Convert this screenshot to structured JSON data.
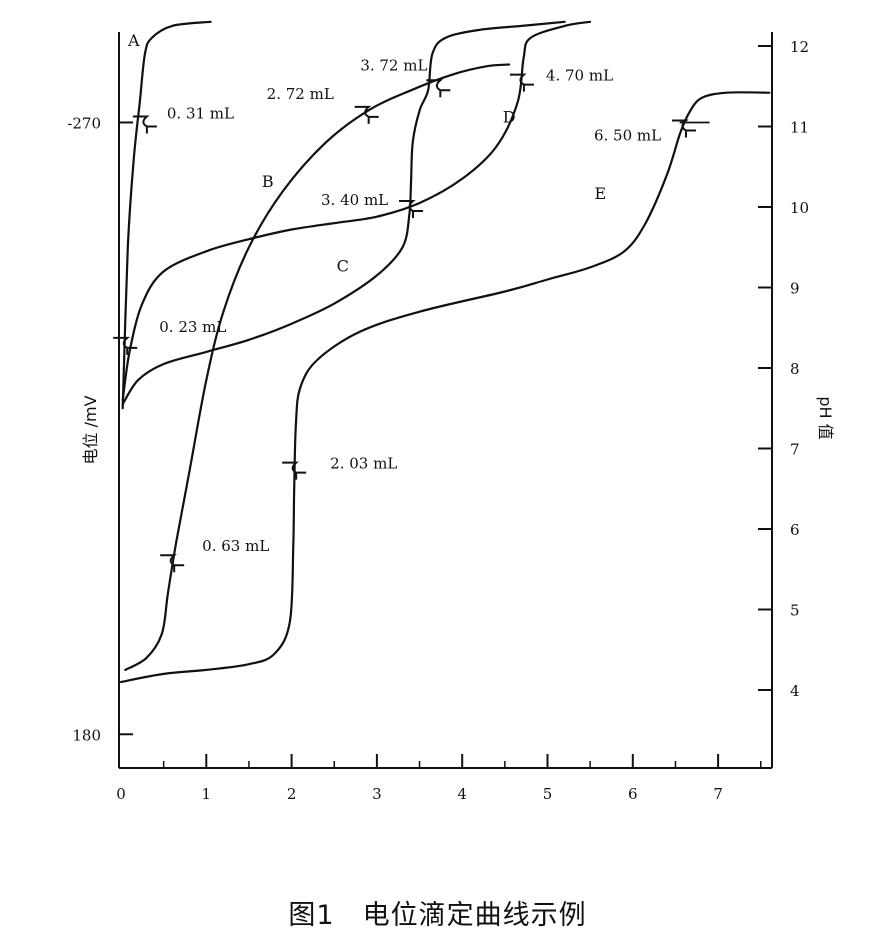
{
  "caption": "图1　电位滴定曲线示例",
  "chart_data": {
    "type": "line",
    "xlabel": "",
    "ylabel_left": "电位 /mV",
    "ylabel_right": "pH 值",
    "xlim": [
      0,
      7.6
    ],
    "ylim_right": [
      3.0,
      12.3
    ],
    "x_ticks": [
      "0",
      "1",
      "2",
      "3",
      "4",
      "5",
      "6",
      "7"
    ],
    "right_ticks": [
      "4",
      "5",
      "6",
      "7",
      "8",
      "9",
      "10",
      "11",
      "12"
    ],
    "left_ticks": [
      {
        "label": "-270",
        "ph": 11.05
      },
      {
        "label": "180",
        "ph": 3.45
      }
    ],
    "series": [
      {
        "name": "A",
        "label_at": [
          0.15,
          12.0
        ],
        "points": [
          [
            0.02,
            7.5
          ],
          [
            0.08,
            9.5
          ],
          [
            0.15,
            10.6
          ],
          [
            0.22,
            11.3
          ],
          [
            0.28,
            11.9
          ],
          [
            0.36,
            12.1
          ],
          [
            0.6,
            12.25
          ],
          [
            1.05,
            12.3
          ]
        ]
      },
      {
        "name": "B",
        "label_at": [
          1.72,
          10.25
        ],
        "points": [
          [
            0.05,
            4.25
          ],
          [
            0.3,
            4.4
          ],
          [
            0.48,
            4.7
          ],
          [
            0.55,
            5.2
          ],
          [
            0.65,
            5.85
          ],
          [
            0.8,
            6.7
          ],
          [
            1.0,
            7.85
          ],
          [
            1.2,
            8.7
          ],
          [
            1.5,
            9.5
          ],
          [
            1.9,
            10.2
          ],
          [
            2.4,
            10.8
          ],
          [
            2.9,
            11.2
          ],
          [
            3.4,
            11.45
          ],
          [
            3.9,
            11.65
          ],
          [
            4.3,
            11.75
          ],
          [
            4.55,
            11.77
          ]
        ]
      },
      {
        "name": "C",
        "label_at": [
          2.6,
          9.2
        ],
        "points": [
          [
            0.02,
            7.55
          ],
          [
            0.2,
            7.85
          ],
          [
            0.5,
            8.05
          ],
          [
            1.0,
            8.2
          ],
          [
            1.5,
            8.35
          ],
          [
            2.0,
            8.55
          ],
          [
            2.5,
            8.8
          ],
          [
            3.0,
            9.15
          ],
          [
            3.3,
            9.5
          ],
          [
            3.38,
            9.9
          ],
          [
            3.4,
            10.3
          ],
          [
            3.42,
            10.8
          ],
          [
            3.5,
            11.2
          ],
          [
            3.6,
            11.45
          ],
          [
            3.65,
            11.9
          ],
          [
            3.8,
            12.1
          ],
          [
            4.2,
            12.2
          ],
          [
            4.7,
            12.25
          ],
          [
            5.2,
            12.3
          ]
        ]
      },
      {
        "name": "D",
        "label_at": [
          4.55,
          11.05
        ],
        "points": [
          [
            0.02,
            7.6
          ],
          [
            0.1,
            8.2
          ],
          [
            0.25,
            8.8
          ],
          [
            0.5,
            9.2
          ],
          [
            1.0,
            9.45
          ],
          [
            1.5,
            9.6
          ],
          [
            2.0,
            9.72
          ],
          [
            2.5,
            9.8
          ],
          [
            3.0,
            9.88
          ],
          [
            3.5,
            10.05
          ],
          [
            4.0,
            10.35
          ],
          [
            4.4,
            10.75
          ],
          [
            4.65,
            11.3
          ],
          [
            4.72,
            11.85
          ],
          [
            4.8,
            12.1
          ],
          [
            5.2,
            12.25
          ],
          [
            5.5,
            12.3
          ]
        ]
      },
      {
        "name": "E",
        "label_at": [
          5.62,
          10.1
        ],
        "points": [
          [
            0.0,
            4.1
          ],
          [
            0.5,
            4.2
          ],
          [
            1.0,
            4.25
          ],
          [
            1.5,
            4.32
          ],
          [
            1.8,
            4.45
          ],
          [
            1.98,
            4.85
          ],
          [
            2.02,
            5.8
          ],
          [
            2.03,
            6.5
          ],
          [
            2.05,
            7.3
          ],
          [
            2.1,
            7.75
          ],
          [
            2.3,
            8.1
          ],
          [
            2.8,
            8.45
          ],
          [
            3.5,
            8.7
          ],
          [
            4.5,
            8.95
          ],
          [
            5.0,
            9.1
          ],
          [
            5.5,
            9.25
          ],
          [
            5.9,
            9.45
          ],
          [
            6.15,
            9.8
          ],
          [
            6.4,
            10.4
          ],
          [
            6.55,
            10.9
          ],
          [
            6.65,
            11.15
          ],
          [
            6.8,
            11.35
          ],
          [
            7.1,
            11.42
          ],
          [
            7.6,
            11.42
          ]
        ]
      }
    ],
    "annotations": [
      {
        "text": "0. 31 mL",
        "at": [
          0.28,
          11.05
        ],
        "offset": [
          12,
          -4
        ]
      },
      {
        "text": "0. 23 mL",
        "at": [
          0.05,
          8.3
        ],
        "offset": [
          24,
          -12
        ]
      },
      {
        "text": "0. 63 mL",
        "at": [
          0.6,
          5.6
        ],
        "offset": [
          20,
          -10
        ]
      },
      {
        "text": "2. 03 mL",
        "at": [
          2.03,
          6.75
        ],
        "offset": [
          26,
          0
        ]
      },
      {
        "text": "2. 72 mL",
        "at": [
          2.88,
          11.17
        ],
        "offset": [
          -110,
          -14
        ]
      },
      {
        "text": "3. 40 mL",
        "at": [
          3.4,
          10.0
        ],
        "offset": [
          -100,
          -2
        ]
      },
      {
        "text": "3. 72 mL",
        "at": [
          3.72,
          11.5
        ],
        "offset": [
          -88,
          -16
        ]
      },
      {
        "text": "4. 70 mL",
        "at": [
          4.7,
          11.57
        ],
        "offset": [
          14,
          0
        ]
      },
      {
        "text": "6. 50 mL",
        "at": [
          6.6,
          11.0
        ],
        "offset": [
          -100,
          14
        ]
      }
    ]
  }
}
